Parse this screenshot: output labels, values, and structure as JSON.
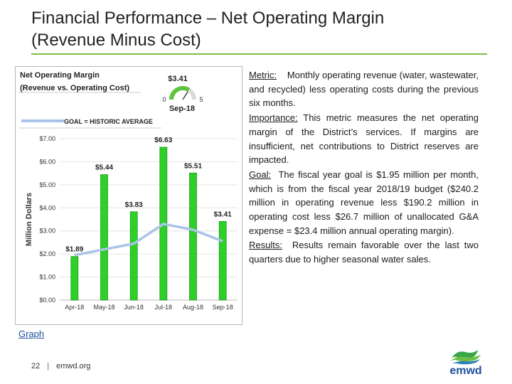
{
  "title": {
    "line1": "Financial Performance – Net Operating Margin",
    "line2": "(Revenue Minus Cost)"
  },
  "chart_data": {
    "type": "bar",
    "title": "Net Operating Margin",
    "subtitle": "(Revenue vs. Operating Cost)",
    "ylabel": "Million Dollars",
    "xlabel": "",
    "categories": [
      "Apr-18",
      "May-18",
      "Jun-18",
      "Jul-18",
      "Aug-18",
      "Sep-18"
    ],
    "series": [
      {
        "name": "Net Operating Margin",
        "values": [
          1.89,
          5.44,
          3.83,
          6.63,
          5.51,
          3.41
        ]
      },
      {
        "name": "GOAL = HISTORIC AVERAGE",
        "values": [
          1.95,
          2.2,
          2.45,
          3.3,
          3.05,
          2.55
        ]
      }
    ],
    "data_labels": [
      "$1.89",
      "$5.44",
      "$3.83",
      "$6.63",
      "$5.51",
      "$3.41"
    ],
    "yticks": [
      "$0.00",
      "$1.00",
      "$2.00",
      "$3.00",
      "$4.00",
      "$5.00",
      "$6.00",
      "$7.00"
    ],
    "ylim": [
      0,
      7
    ],
    "legend": "GOAL = HISTORIC AVERAGE",
    "gauge": {
      "value_label": "$3.41",
      "min_label": "0",
      "max_label": "5",
      "period": "Sep-18",
      "value": 3.41
    },
    "colors": {
      "bar": "#2fcf2a",
      "goal": "#a9c4e8"
    }
  },
  "text": {
    "metric_label": "Metric:",
    "metric": "Monthly operating revenue (water, wastewater, and recycled) less operating costs during the previous six months.",
    "importance_label": "Importance:",
    "importance": "This metric measures the net operating margin of the District’s services. If margins are insufficient, net contributions to District reserves are impacted.",
    "goal_label": "Goal:",
    "goal": "The fiscal year goal is $1.95 million per month, which is from the fiscal year 2018/19 budget ($240.2 million in operating revenue less $190.2 million in operating cost less $26.7 million of unallocated G&A expense = $23.4 million annual operating margin).",
    "results_label": "Results:",
    "results": "Results remain favorable over the last two quarters due to higher seasonal water sales."
  },
  "graph_link": "Graph",
  "footer": {
    "page": "22",
    "site": "emwd.org"
  },
  "logo": {
    "text": "emwd",
    "color": "#1f4e9c"
  }
}
